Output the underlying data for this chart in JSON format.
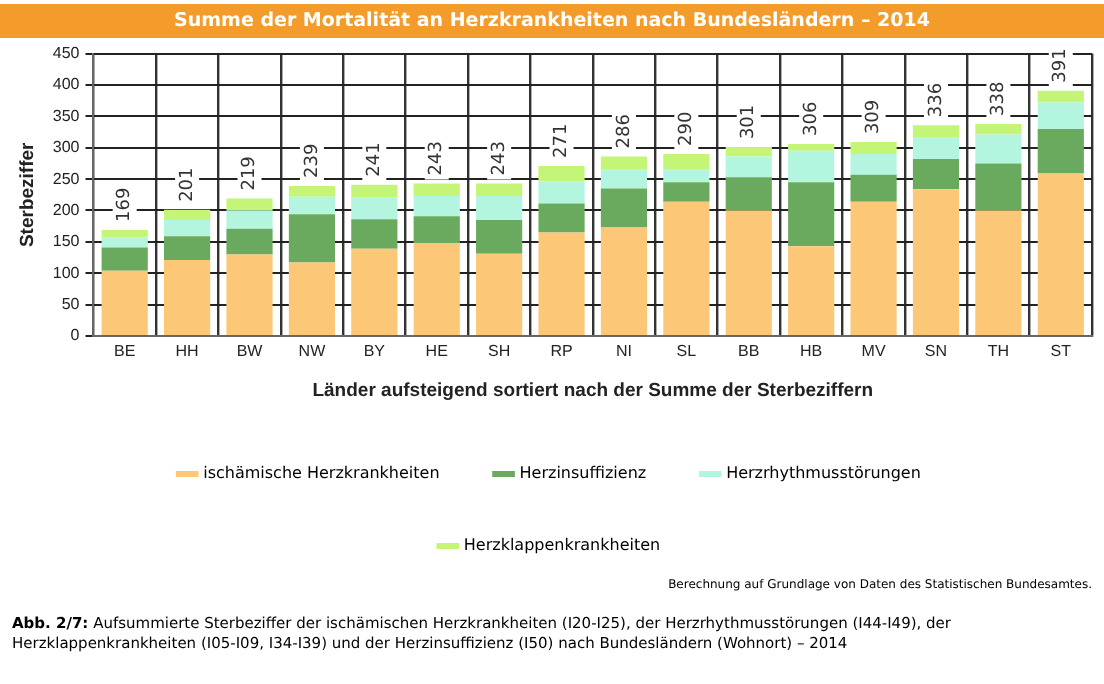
{
  "chart_data": {
    "type": "bar",
    "stacked": true,
    "title": "Summe der Mortalität an Herzkrankheiten nach Bundesländern – 2014",
    "xlabel": "Länder aufsteigend sortiert nach der Summe der Sterbeziffern",
    "ylabel": "Sterbeziffer",
    "categories": [
      "BE",
      "HH",
      "BW",
      "NW",
      "BY",
      "HE",
      "SH",
      "RP",
      "NI",
      "SL",
      "BB",
      "HB",
      "MV",
      "SN",
      "TH",
      "ST"
    ],
    "series": [
      {
        "name": "ischämische Herzkrankheiten",
        "color": "#fcc877",
        "values": [
          104,
          121,
          130,
          117,
          139,
          148,
          131,
          165,
          173,
          214,
          200,
          143,
          214,
          234,
          200,
          259
        ]
      },
      {
        "name": "Herzinsuffizienz",
        "color": "#6aaa5e",
        "values": [
          37,
          38,
          41,
          77,
          47,
          43,
          54,
          46,
          62,
          31,
          53,
          102,
          43,
          48,
          75,
          71
        ]
      },
      {
        "name": "Herzrhythmusstörungen",
        "color": "#b4f5e0",
        "values": [
          16,
          26,
          29,
          28,
          35,
          32,
          38,
          35,
          31,
          21,
          33,
          50,
          33,
          35,
          46,
          42
        ]
      },
      {
        "name": "Herzklappenkrankheiten",
        "color": "#c4f577",
        "values": [
          12,
          16,
          19,
          17,
          20,
          20,
          20,
          25,
          20,
          24,
          15,
          11,
          19,
          19,
          17,
          19
        ]
      }
    ],
    "totals": [
      "169",
      "201",
      "219",
      "239",
      "241",
      "243",
      "243",
      "271",
      "286",
      "290",
      "301",
      "306",
      "309",
      "336",
      "338",
      "391"
    ],
    "ylim": [
      0,
      450
    ],
    "yticks": [
      0,
      50,
      100,
      150,
      200,
      250,
      300,
      350,
      400,
      450
    ],
    "grid": true,
    "legend": "bottom",
    "annotations": [
      "Berechnung auf Grundlage von Daten des Statistischen Bundesamtes.",
      "Abb. 2/7: Aufsummierte Sterbeziffer der ischämischen Herzkrankheiten (I20-I25), der Herzrhythmusstörungen (I44-I49), der Herzklappenkrankheiten (I05-I09, I34-I39) und der Herzinsuffizienz (I50) nach Bundesländern (Wohnort) – 2014"
    ]
  }
}
